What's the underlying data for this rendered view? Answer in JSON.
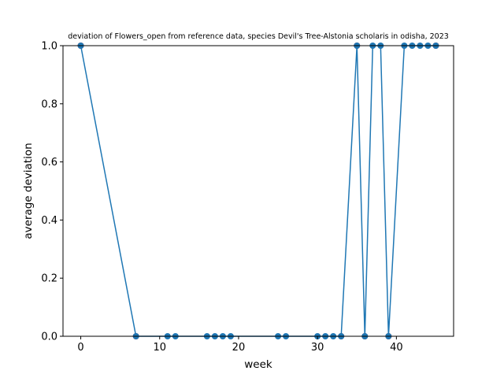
{
  "chart_data": {
    "type": "line",
    "title": "deviation of Flowers_open from reference data, species Devil's Tree-Alstonia scholaris in odisha, 2023",
    "xlabel": "week",
    "ylabel": "average deviation",
    "xlim": [
      -2.25,
      47.25
    ],
    "ylim": [
      0,
      1
    ],
    "xticks": [
      0,
      10,
      20,
      30,
      40
    ],
    "yticks": [
      0.0,
      0.2,
      0.4,
      0.6,
      0.8,
      1.0
    ],
    "xtick_labels": [
      "0",
      "10",
      "20",
      "30",
      "40"
    ],
    "ytick_labels": [
      "0.0",
      "0.2",
      "0.4",
      "0.6",
      "0.8",
      "1.0"
    ],
    "grid": false,
    "series": [
      {
        "color": "#1f77b4",
        "x": [
          0,
          7,
          11,
          12,
          16,
          17,
          18,
          19,
          25,
          26,
          30,
          31,
          32,
          33,
          35,
          36,
          37,
          38,
          39,
          41,
          42,
          43,
          44,
          45
        ],
        "y": [
          1,
          0,
          0,
          0,
          0,
          0,
          0,
          0,
          0,
          0,
          0,
          0,
          0,
          0,
          1,
          0,
          1,
          1,
          0,
          1,
          1,
          1,
          1,
          1
        ]
      }
    ],
    "reference_markers": {
      "color": "#d62728",
      "x": [
        0,
        7,
        33,
        35,
        36,
        39,
        45
      ],
      "y": [
        1,
        0,
        0,
        1,
        0,
        0,
        1
      ]
    }
  }
}
